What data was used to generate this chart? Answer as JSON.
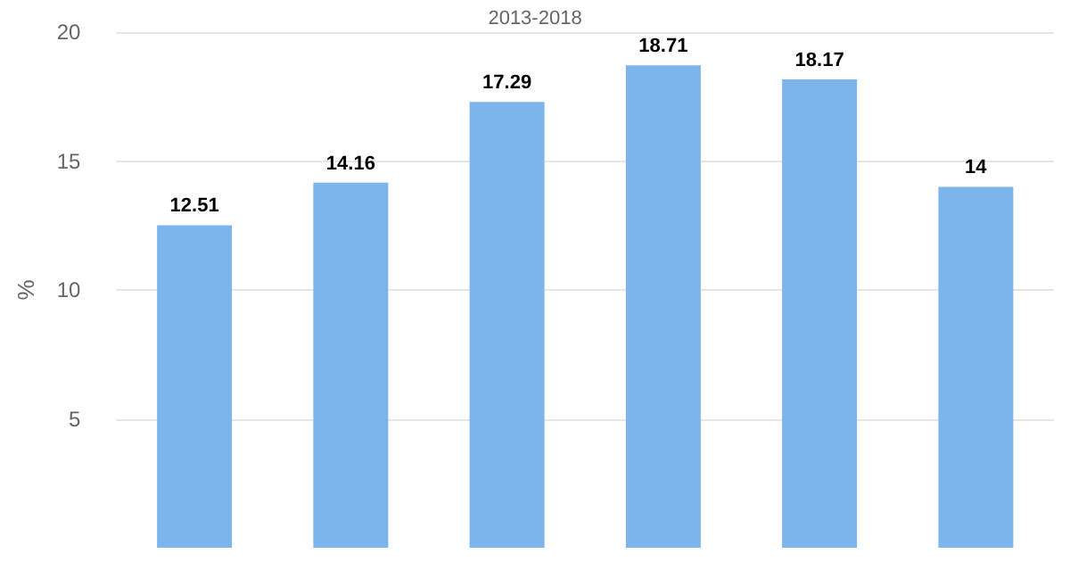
{
  "chart_data": {
    "type": "bar",
    "subtitle": "2013-2018",
    "ylabel": "%",
    "categories": [
      null,
      null,
      null,
      null,
      null,
      null
    ],
    "series": [
      {
        "color": "#7cb5ec",
        "values": [
          12.51,
          14.16,
          17.29,
          18.71,
          18.17,
          14
        ]
      }
    ],
    "ylim": [
      0,
      20
    ],
    "yticks": [
      5,
      10,
      15,
      20
    ],
    "grid": "y",
    "data_labels": true
  }
}
